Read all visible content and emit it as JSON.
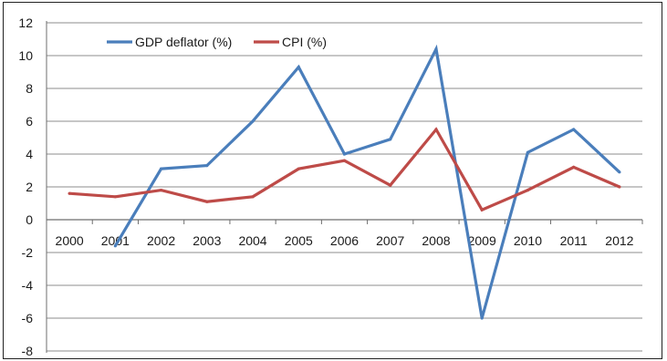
{
  "chart_data": {
    "type": "line",
    "categories": [
      "2000",
      "2001",
      "2002",
      "2003",
      "2004",
      "2005",
      "2006",
      "2007",
      "2008",
      "2009",
      "2010",
      "2011",
      "2012"
    ],
    "series": [
      {
        "name": "GDP deflator (%)",
        "color": "#4a7ebb",
        "values": [
          null,
          -1.6,
          3.1,
          3.3,
          6.0,
          9.3,
          4.0,
          4.9,
          10.4,
          -6.0,
          4.1,
          5.5,
          2.9
        ]
      },
      {
        "name": "CPI (%)",
        "color": "#be4b48",
        "values": [
          1.6,
          1.4,
          1.8,
          1.1,
          1.4,
          3.1,
          3.6,
          2.1,
          5.5,
          0.6,
          1.8,
          3.2,
          2.0
        ]
      }
    ],
    "y_ticks": [
      "12",
      "10",
      "8",
      "6",
      "4",
      "2",
      "0",
      "-2",
      "-4",
      "-6",
      "-8"
    ],
    "ylim": [
      -8,
      12
    ],
    "grid": "horizontal",
    "legend_position": "top-left",
    "title": "",
    "xlabel": "",
    "ylabel": ""
  }
}
